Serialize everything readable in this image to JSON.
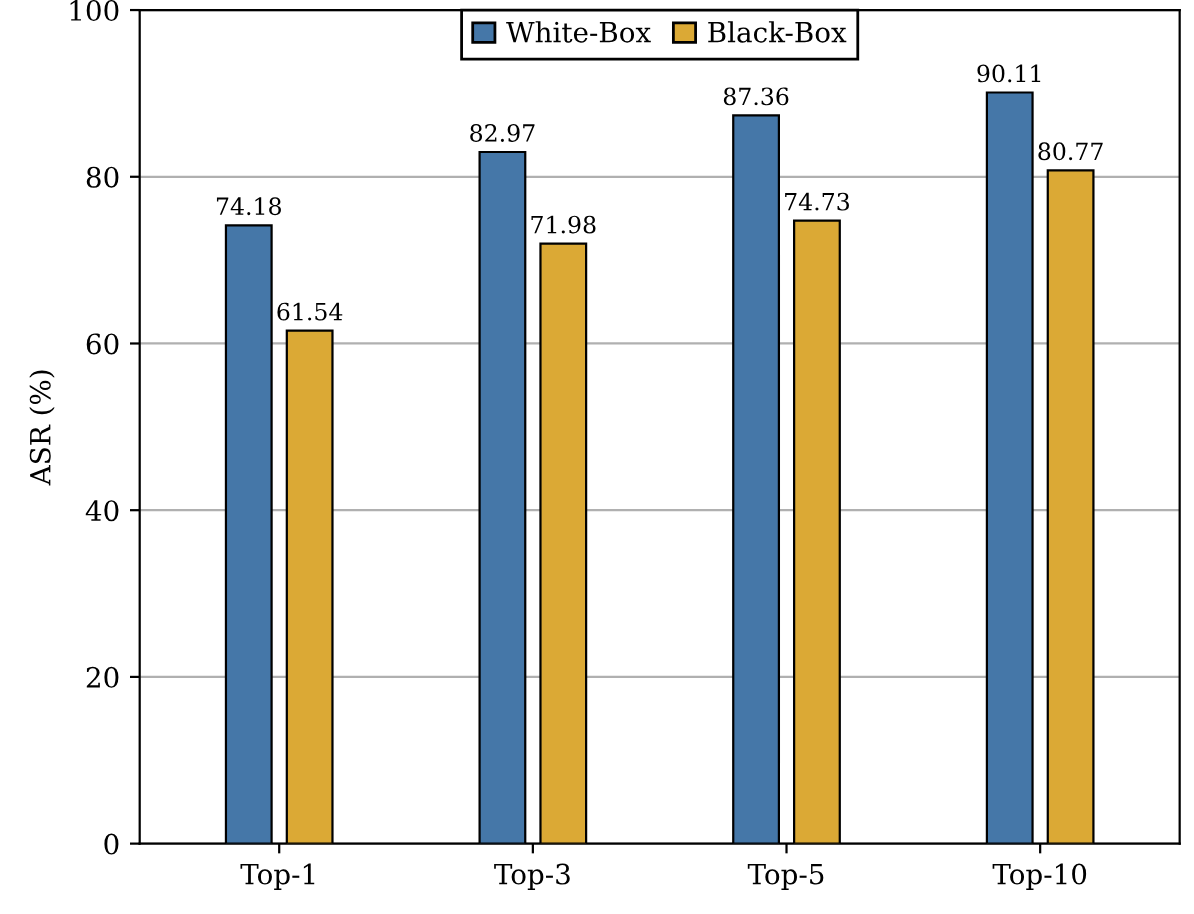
{
  "chart_data": {
    "type": "bar",
    "ylabel": "ASR (%)",
    "categories": [
      "Top-1",
      "Top-3",
      "Top-5",
      "Top-10"
    ],
    "series": [
      {
        "name": "White-Box",
        "color": "#4577a8",
        "values": [
          74.18,
          82.97,
          87.36,
          90.11
        ]
      },
      {
        "name": "Black-Box",
        "color": "#dba935",
        "values": [
          61.54,
          71.98,
          74.73,
          80.77
        ]
      }
    ],
    "ylim": [
      0,
      100
    ],
    "yticks": [
      0,
      20,
      40,
      60,
      80,
      100
    ],
    "grid": "y",
    "legend": "top",
    "data_labels": true
  }
}
